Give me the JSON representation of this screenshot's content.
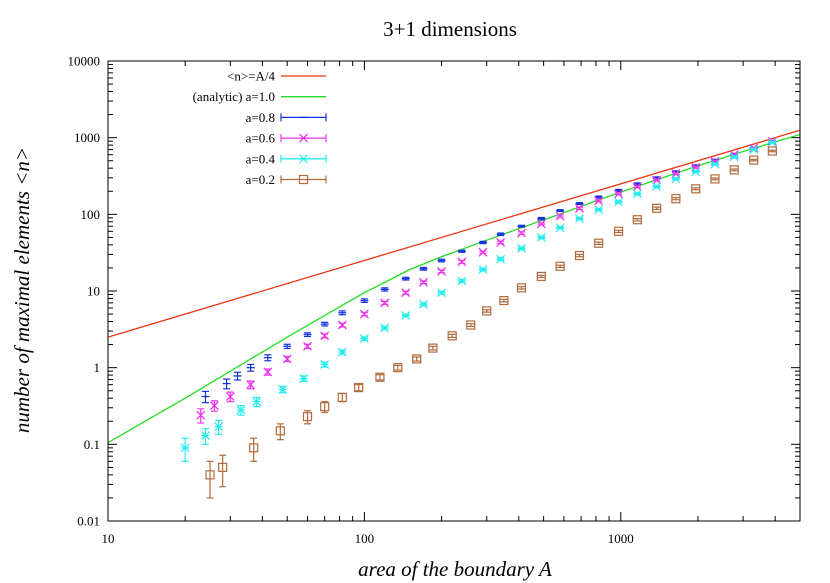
{
  "chart_data": {
    "type": "scatter",
    "title": "3+1 dimensions",
    "xlabel": "area of the boundary A",
    "ylabel": "number of maximal elements <n>",
    "xscale": "log",
    "yscale": "log",
    "xlim": [
      10,
      5000
    ],
    "ylim": [
      0.01,
      10000
    ],
    "x_ticks": [
      {
        "value": 10,
        "label": "10"
      },
      {
        "value": 100,
        "label": "100"
      },
      {
        "value": 1000,
        "label": "1000"
      }
    ],
    "y_ticks": [
      {
        "value": 0.01,
        "label": "0.01"
      },
      {
        "value": 0.1,
        "label": "0.1"
      },
      {
        "value": 1,
        "label": "1"
      },
      {
        "value": 10,
        "label": "10"
      },
      {
        "value": 100,
        "label": "100"
      },
      {
        "value": 1000,
        "label": "1000"
      },
      {
        "value": 10000,
        "label": "10000"
      }
    ],
    "legend_position": "top-left",
    "series": [
      {
        "name": "<n>=A/4",
        "kind": "line",
        "color": "#e8340f",
        "points": [
          [
            10,
            2.5
          ],
          [
            5000,
            1250
          ]
        ]
      },
      {
        "name": "(analytic) a=1.0",
        "kind": "line",
        "color": "#22dd22",
        "points": [
          [
            10,
            0.105
          ],
          [
            15,
            0.23
          ],
          [
            20,
            0.4
          ],
          [
            30,
            0.9
          ],
          [
            40,
            1.6
          ],
          [
            50,
            2.5
          ],
          [
            70,
            4.8
          ],
          [
            100,
            9.5
          ],
          [
            150,
            19
          ],
          [
            200,
            28
          ],
          [
            300,
            46
          ],
          [
            400,
            65
          ],
          [
            600,
            105
          ],
          [
            800,
            150
          ],
          [
            1000,
            195
          ],
          [
            1500,
            310
          ],
          [
            2000,
            430
          ],
          [
            3000,
            660
          ],
          [
            4000,
            880
          ],
          [
            5000,
            1100
          ]
        ]
      },
      {
        "name": "a=0.8",
        "kind": "errorbar",
        "marker": "plus",
        "color": "#1133dd",
        "points": [
          [
            24,
            0.42,
            0.07
          ],
          [
            29,
            0.62,
            0.09
          ],
          [
            32,
            0.78,
            0.09
          ],
          [
            36,
            1.0,
            0.1
          ],
          [
            42,
            1.35,
            0.12
          ],
          [
            50,
            1.9,
            0.12
          ],
          [
            60,
            2.7,
            0.15
          ],
          [
            70,
            3.7,
            0.2
          ],
          [
            82,
            5.2,
            0.3
          ],
          [
            100,
            7.5,
            0.4
          ],
          [
            120,
            10.5,
            0.5
          ],
          [
            145,
            14.5,
            0.6
          ],
          [
            170,
            19.5,
            0.8
          ],
          [
            200,
            25,
            1
          ],
          [
            240,
            33,
            1
          ],
          [
            290,
            43,
            1.5
          ],
          [
            340,
            55,
            2
          ],
          [
            410,
            70,
            2
          ],
          [
            490,
            88,
            3
          ],
          [
            580,
            112,
            3
          ],
          [
            690,
            138,
            4
          ],
          [
            820,
            168,
            5
          ],
          [
            980,
            205,
            6
          ],
          [
            1160,
            250,
            7
          ],
          [
            1380,
            300,
            8
          ],
          [
            1640,
            360,
            9
          ],
          [
            1960,
            430,
            10
          ],
          [
            2330,
            510,
            12
          ],
          [
            2770,
            610,
            14
          ],
          [
            3300,
            730,
            15
          ],
          [
            3900,
            880,
            18
          ]
        ]
      },
      {
        "name": "a=0.6",
        "kind": "errorbar",
        "marker": "cross",
        "color": "#ee33ee",
        "points": [
          [
            23,
            0.24,
            0.05
          ],
          [
            26,
            0.32,
            0.05
          ],
          [
            30,
            0.42,
            0.06
          ],
          [
            36,
            0.6,
            0.07
          ],
          [
            42,
            0.88,
            0.08
          ],
          [
            50,
            1.3,
            0.1
          ],
          [
            60,
            1.9,
            0.12
          ],
          [
            70,
            2.6,
            0.15
          ],
          [
            82,
            3.6,
            0.2
          ],
          [
            100,
            5.0,
            0.25
          ],
          [
            120,
            7.0,
            0.3
          ],
          [
            145,
            9.5,
            0.4
          ],
          [
            170,
            13,
            0.5
          ],
          [
            200,
            18,
            0.7
          ],
          [
            240,
            24,
            1
          ],
          [
            290,
            32,
            1
          ],
          [
            340,
            43,
            1.5
          ],
          [
            410,
            57,
            2
          ],
          [
            490,
            75,
            2
          ],
          [
            580,
            95,
            3
          ],
          [
            690,
            120,
            4
          ],
          [
            820,
            150,
            4
          ],
          [
            980,
            185,
            5
          ],
          [
            1160,
            230,
            6
          ],
          [
            1380,
            280,
            7
          ],
          [
            1640,
            340,
            8
          ],
          [
            1960,
            410,
            10
          ],
          [
            2330,
            490,
            12
          ],
          [
            2770,
            600,
            14
          ],
          [
            3300,
            730,
            15
          ],
          [
            3900,
            900,
            18
          ]
        ]
      },
      {
        "name": "a=0.4",
        "kind": "errorbar",
        "marker": "star",
        "color": "#22eeee",
        "points": [
          [
            20,
            0.09,
            0.03
          ],
          [
            24,
            0.13,
            0.03
          ],
          [
            27,
            0.17,
            0.035
          ],
          [
            33,
            0.28,
            0.04
          ],
          [
            38,
            0.36,
            0.05
          ],
          [
            48,
            0.52,
            0.05
          ],
          [
            58,
            0.72,
            0.06
          ],
          [
            70,
            1.1,
            0.08
          ],
          [
            82,
            1.6,
            0.1
          ],
          [
            100,
            2.4,
            0.12
          ],
          [
            120,
            3.3,
            0.15
          ],
          [
            145,
            4.8,
            0.2
          ],
          [
            170,
            6.7,
            0.3
          ],
          [
            200,
            9.5,
            0.4
          ],
          [
            240,
            13.5,
            0.6
          ],
          [
            290,
            19,
            0.8
          ],
          [
            340,
            26,
            1
          ],
          [
            410,
            36,
            1.5
          ],
          [
            490,
            50,
            2
          ],
          [
            580,
            67,
            2
          ],
          [
            690,
            88,
            3
          ],
          [
            820,
            115,
            4
          ],
          [
            980,
            145,
            5
          ],
          [
            1160,
            185,
            6
          ],
          [
            1380,
            230,
            7
          ],
          [
            1640,
            290,
            8
          ],
          [
            1960,
            360,
            9
          ],
          [
            2330,
            450,
            11
          ],
          [
            2770,
            560,
            13
          ],
          [
            3300,
            700,
            15
          ],
          [
            3900,
            870,
            18
          ]
        ]
      },
      {
        "name": "a=0.2",
        "kind": "errorbar",
        "marker": "square",
        "color": "#b06a3c",
        "points": [
          [
            25,
            0.04,
            0.02
          ],
          [
            28,
            0.05,
            0.022
          ],
          [
            37,
            0.09,
            0.03
          ],
          [
            47,
            0.15,
            0.035
          ],
          [
            60,
            0.23,
            0.045
          ],
          [
            70,
            0.31,
            0.05
          ],
          [
            82,
            0.41,
            0.05
          ],
          [
            95,
            0.55,
            0.05
          ],
          [
            115,
            0.75,
            0.06
          ],
          [
            135,
            1.0,
            0.07
          ],
          [
            160,
            1.3,
            0.08
          ],
          [
            185,
            1.8,
            0.1
          ],
          [
            220,
            2.6,
            0.12
          ],
          [
            260,
            3.6,
            0.15
          ],
          [
            300,
            5.5,
            0.2
          ],
          [
            350,
            7.5,
            0.3
          ],
          [
            410,
            11,
            0.4
          ],
          [
            490,
            15.5,
            0.5
          ],
          [
            580,
            21,
            0.7
          ],
          [
            690,
            29,
            1
          ],
          [
            820,
            42,
            1.5
          ],
          [
            980,
            60,
            2
          ],
          [
            1160,
            85,
            3
          ],
          [
            1380,
            120,
            4
          ],
          [
            1640,
            160,
            5
          ],
          [
            1960,
            215,
            6
          ],
          [
            2330,
            290,
            8
          ],
          [
            2770,
            380,
            10
          ],
          [
            3300,
            510,
            12
          ],
          [
            3900,
            670,
            15
          ]
        ]
      }
    ]
  }
}
